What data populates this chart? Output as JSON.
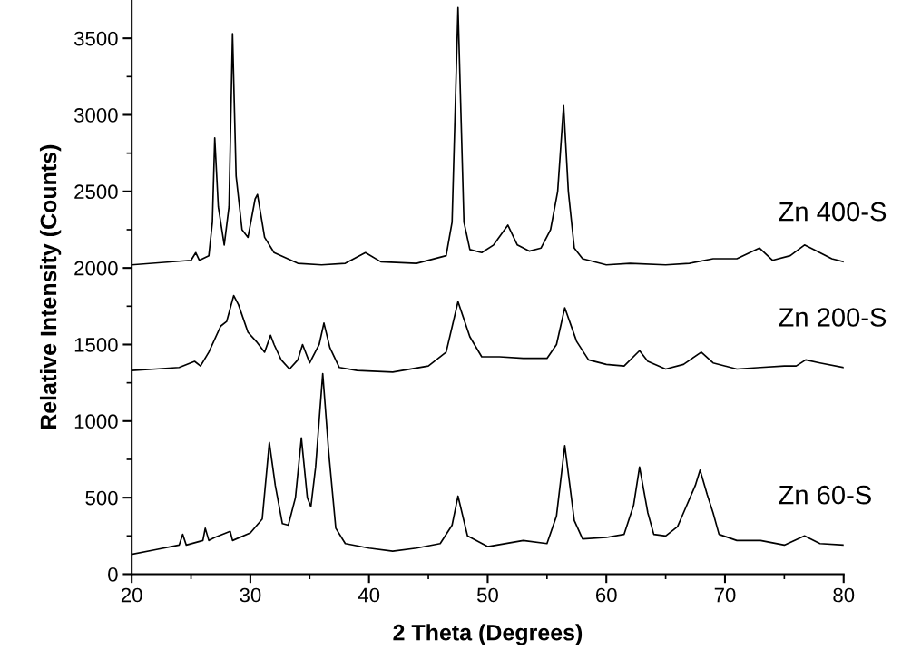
{
  "chart_data": {
    "type": "line",
    "xlabel": "2 Theta (Degrees)",
    "ylabel": "Relative Intensity (Counts)",
    "xlim": [
      20,
      80
    ],
    "ylim": [
      0,
      3750
    ],
    "xticks": [
      20,
      30,
      40,
      50,
      60,
      70,
      80
    ],
    "yticks": [
      0,
      500,
      1000,
      1500,
      2000,
      2500,
      3000,
      3500
    ],
    "grid": false,
    "legend": false,
    "marker": "none",
    "line_style": "solid",
    "series": [
      {
        "name": "Zn 400-S",
        "color": "#000000",
        "x": [
          20,
          25,
          25.4,
          25.7,
          26.5,
          26.8,
          27.0,
          27.3,
          27.8,
          28.2,
          28.5,
          28.8,
          29.3,
          29.8,
          30.4,
          30.6,
          31.2,
          32,
          34,
          36,
          38,
          39.7,
          41,
          44,
          46.5,
          47.0,
          47.5,
          48.0,
          48.5,
          49.5,
          50.5,
          51.7,
          52.5,
          53.5,
          54.5,
          55.3,
          55.9,
          56.4,
          56.8,
          57.3,
          58,
          60,
          62,
          65,
          67,
          69,
          71,
          72.9,
          74,
          75.5,
          76.7,
          77.5,
          79,
          80
        ],
        "values": [
          2020,
          2050,
          2100,
          2050,
          2080,
          2300,
          2850,
          2400,
          2150,
          2400,
          3530,
          2600,
          2250,
          2200,
          2450,
          2480,
          2200,
          2100,
          2030,
          2020,
          2030,
          2100,
          2040,
          2030,
          2080,
          2300,
          3700,
          2300,
          2120,
          2100,
          2150,
          2280,
          2150,
          2110,
          2130,
          2250,
          2500,
          3060,
          2500,
          2130,
          2060,
          2020,
          2030,
          2020,
          2030,
          2060,
          2060,
          2130,
          2050,
          2080,
          2150,
          2120,
          2060,
          2040
        ]
      },
      {
        "name": "Zn 200-S",
        "color": "#000000",
        "x": [
          20,
          22,
          24,
          25.3,
          25.8,
          26.5,
          27.5,
          28.0,
          28.6,
          29.0,
          29.8,
          30.5,
          31.2,
          31.7,
          32.0,
          32.6,
          33.3,
          34.0,
          34.4,
          35.0,
          35.8,
          36.2,
          36.7,
          37.5,
          39,
          42,
          45,
          46.5,
          47.5,
          48.5,
          49.5,
          51,
          53,
          55,
          55.8,
          56.5,
          57.5,
          58.5,
          60,
          61.5,
          62.8,
          63.5,
          65,
          66.5,
          68,
          69,
          71,
          73,
          75,
          76,
          76.8,
          78,
          80
        ],
        "values": [
          1330,
          1340,
          1350,
          1390,
          1360,
          1450,
          1620,
          1650,
          1820,
          1760,
          1580,
          1520,
          1450,
          1560,
          1500,
          1400,
          1340,
          1400,
          1500,
          1380,
          1500,
          1640,
          1480,
          1350,
          1330,
          1320,
          1360,
          1450,
          1780,
          1550,
          1420,
          1420,
          1410,
          1410,
          1500,
          1740,
          1520,
          1400,
          1370,
          1360,
          1460,
          1390,
          1340,
          1370,
          1450,
          1380,
          1340,
          1350,
          1360,
          1360,
          1400,
          1380,
          1350
        ]
      },
      {
        "name": "Zn 60-S",
        "color": "#000000",
        "x": [
          20,
          22,
          24,
          24.3,
          24.6,
          26,
          26.2,
          26.5,
          27,
          28.3,
          28.5,
          30,
          31.0,
          31.6,
          32.1,
          32.7,
          33.2,
          33.8,
          34.3,
          34.8,
          35.1,
          35.5,
          36.1,
          36.6,
          37.2,
          38,
          40,
          42,
          44,
          46,
          47.0,
          47.5,
          48.3,
          50,
          53,
          55,
          55.8,
          56.5,
          57.3,
          58,
          60,
          61.5,
          62.3,
          62.8,
          63.5,
          64,
          65,
          66,
          66.5,
          67.5,
          67.9,
          68.5,
          69,
          69.5,
          71,
          73,
          75,
          76.7,
          78,
          80
        ],
        "values": [
          130,
          160,
          190,
          260,
          190,
          220,
          300,
          220,
          240,
          280,
          220,
          270,
          360,
          860,
          580,
          330,
          320,
          500,
          890,
          500,
          440,
          700,
          1310,
          800,
          300,
          200,
          170,
          150,
          170,
          200,
          320,
          510,
          250,
          180,
          220,
          200,
          380,
          840,
          350,
          230,
          240,
          260,
          450,
          700,
          400,
          260,
          250,
          310,
          400,
          580,
          680,
          520,
          400,
          260,
          220,
          220,
          190,
          250,
          200,
          190
        ]
      }
    ]
  }
}
